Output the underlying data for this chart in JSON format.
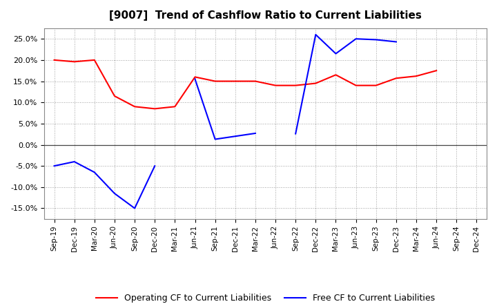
{
  "title": "[9007]  Trend of Cashflow Ratio to Current Liabilities",
  "x_labels": [
    "Sep-19",
    "Dec-19",
    "Mar-20",
    "Jun-20",
    "Sep-20",
    "Dec-20",
    "Mar-21",
    "Jun-21",
    "Sep-21",
    "Dec-21",
    "Mar-22",
    "Jun-22",
    "Sep-22",
    "Dec-22",
    "Mar-23",
    "Jun-23",
    "Sep-23",
    "Dec-23",
    "Mar-24",
    "Jun-24",
    "Sep-24",
    "Dec-24"
  ],
  "operating_cf": [
    0.2,
    0.196,
    0.2,
    0.115,
    0.09,
    0.085,
    0.09,
    0.16,
    0.15,
    0.15,
    0.15,
    0.14,
    0.14,
    0.145,
    0.165,
    0.14,
    0.14,
    0.157,
    0.162,
    0.175,
    null,
    null
  ],
  "free_cf": [
    -0.05,
    -0.04,
    -0.065,
    -0.115,
    -0.15,
    -0.05,
    null,
    0.155,
    0.013,
    0.02,
    0.027,
    null,
    0.026,
    0.26,
    0.215,
    0.25,
    0.248,
    0.243,
    null,
    null,
    null,
    null
  ],
  "operating_cf_color": "#FF0000",
  "free_cf_color": "#0000FF",
  "ylim": [
    -0.175,
    0.275
  ],
  "yticks": [
    -0.15,
    -0.1,
    -0.05,
    0.0,
    0.05,
    0.1,
    0.15,
    0.2,
    0.25
  ],
  "background_color": "#FFFFFF",
  "grid_color": "#888888",
  "legend_labels": [
    "Operating CF to Current Liabilities",
    "Free CF to Current Liabilities"
  ]
}
